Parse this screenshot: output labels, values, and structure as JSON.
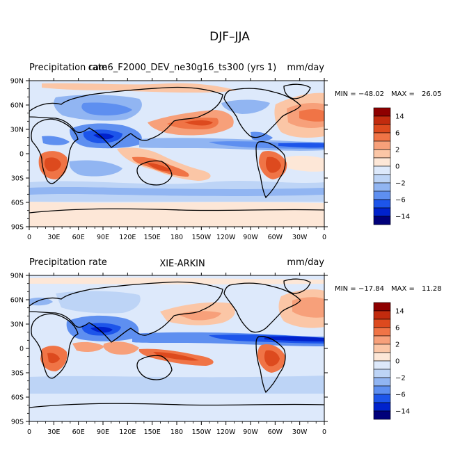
{
  "page_title": "DJF–JJA",
  "colors": {
    "palette": [
      "#00007a",
      "#0022cc",
      "#1d55ea",
      "#5e8ff0",
      "#91b5f2",
      "#bdd4f6",
      "#dde9fb",
      "#fde7d7",
      "#fbc6a6",
      "#f7a07a",
      "#f07446",
      "#dd4a1e",
      "#c22b0e",
      "#8e0000"
    ],
    "ocean": "#dde9fb",
    "land_outline": "#000000"
  },
  "legend_levels": [
    "14",
    "6",
    "2",
    "0",
    "−2",
    "−6",
    "−14"
  ],
  "x_ticks": [
    "0",
    "30E",
    "60E",
    "90E",
    "120E",
    "150E",
    "180",
    "150W",
    "120W",
    "90W",
    "60W",
    "30W",
    "0"
  ],
  "y_ticks": [
    "90N",
    "60N",
    "30N",
    "0",
    "30S",
    "60S",
    "90S"
  ],
  "panels": [
    {
      "left_title": "Precipitation rate",
      "center_title": "cam6_F2000_DEV_ne30g16_ts300 (yrs 1)",
      "right_title": "mm/day",
      "min_label": "MIN =",
      "min_value": "−48.02",
      "max_label": "MAX =",
      "max_value": "26.05"
    },
    {
      "left_title": "Precipitation rate",
      "center_title": "XIE-ARKIN",
      "right_title": "mm/day",
      "min_label": "MIN =",
      "min_value": "−17.84",
      "max_label": "MAX =",
      "max_value": "11.28"
    }
  ]
}
